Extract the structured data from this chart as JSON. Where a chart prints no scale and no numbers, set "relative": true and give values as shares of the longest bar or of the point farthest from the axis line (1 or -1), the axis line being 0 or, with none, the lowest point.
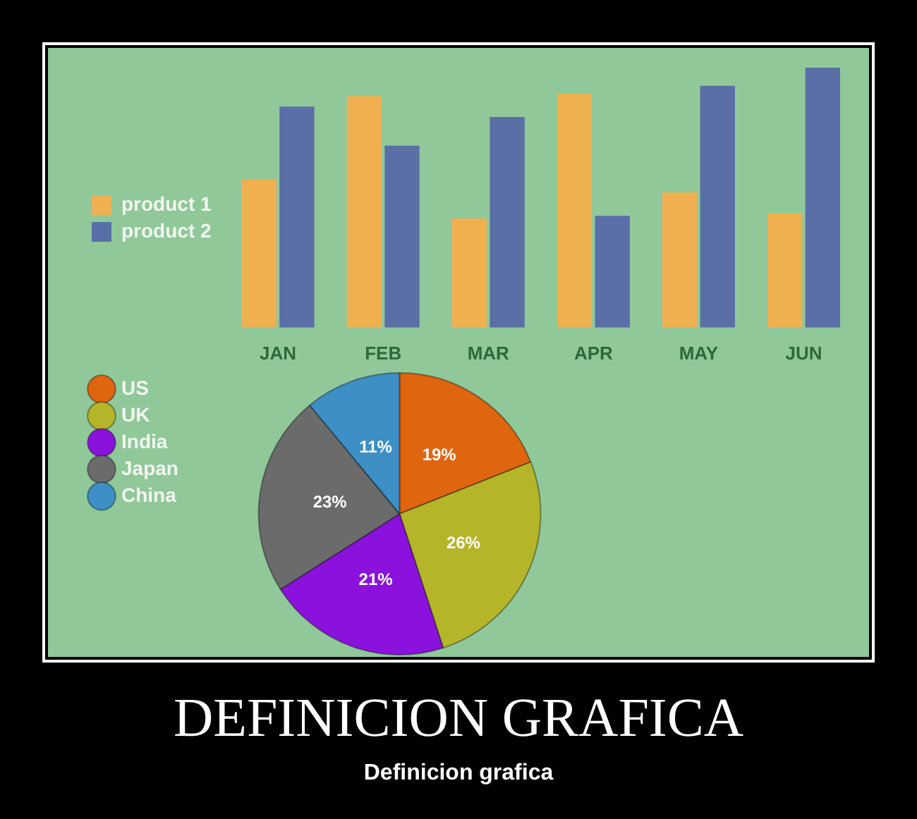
{
  "chart_data": [
    {
      "type": "bar",
      "categories": [
        "JAN",
        "FEB",
        "MAR",
        "APR",
        "MAY",
        "JUN"
      ],
      "series": [
        {
          "name": "product 1",
          "color": "#f0b050",
          "values": [
            0.57,
            0.89,
            0.42,
            0.9,
            0.52,
            0.44
          ]
        },
        {
          "name": "product 2",
          "color": "#5a6ea8",
          "values": [
            0.85,
            0.7,
            0.81,
            0.43,
            0.93,
            1
          ]
        }
      ],
      "relative": true,
      "legend": "left"
    },
    {
      "type": "pie",
      "title": "DEFINICION GRAFICA",
      "subtitle": "Definicion grafica",
      "categories": [
        "US",
        "UK",
        "India",
        "Japan",
        "China"
      ],
      "values": [
        19,
        26,
        21,
        23,
        11
      ],
      "colors": [
        "#e0650f",
        "#b5b52a",
        "#8a12dc",
        "#6b6b6b",
        "#3d8fc6"
      ],
      "value_labels": [
        "19%",
        "26%",
        "21%",
        "23%",
        "11%"
      ],
      "legend": "top left"
    }
  ]
}
